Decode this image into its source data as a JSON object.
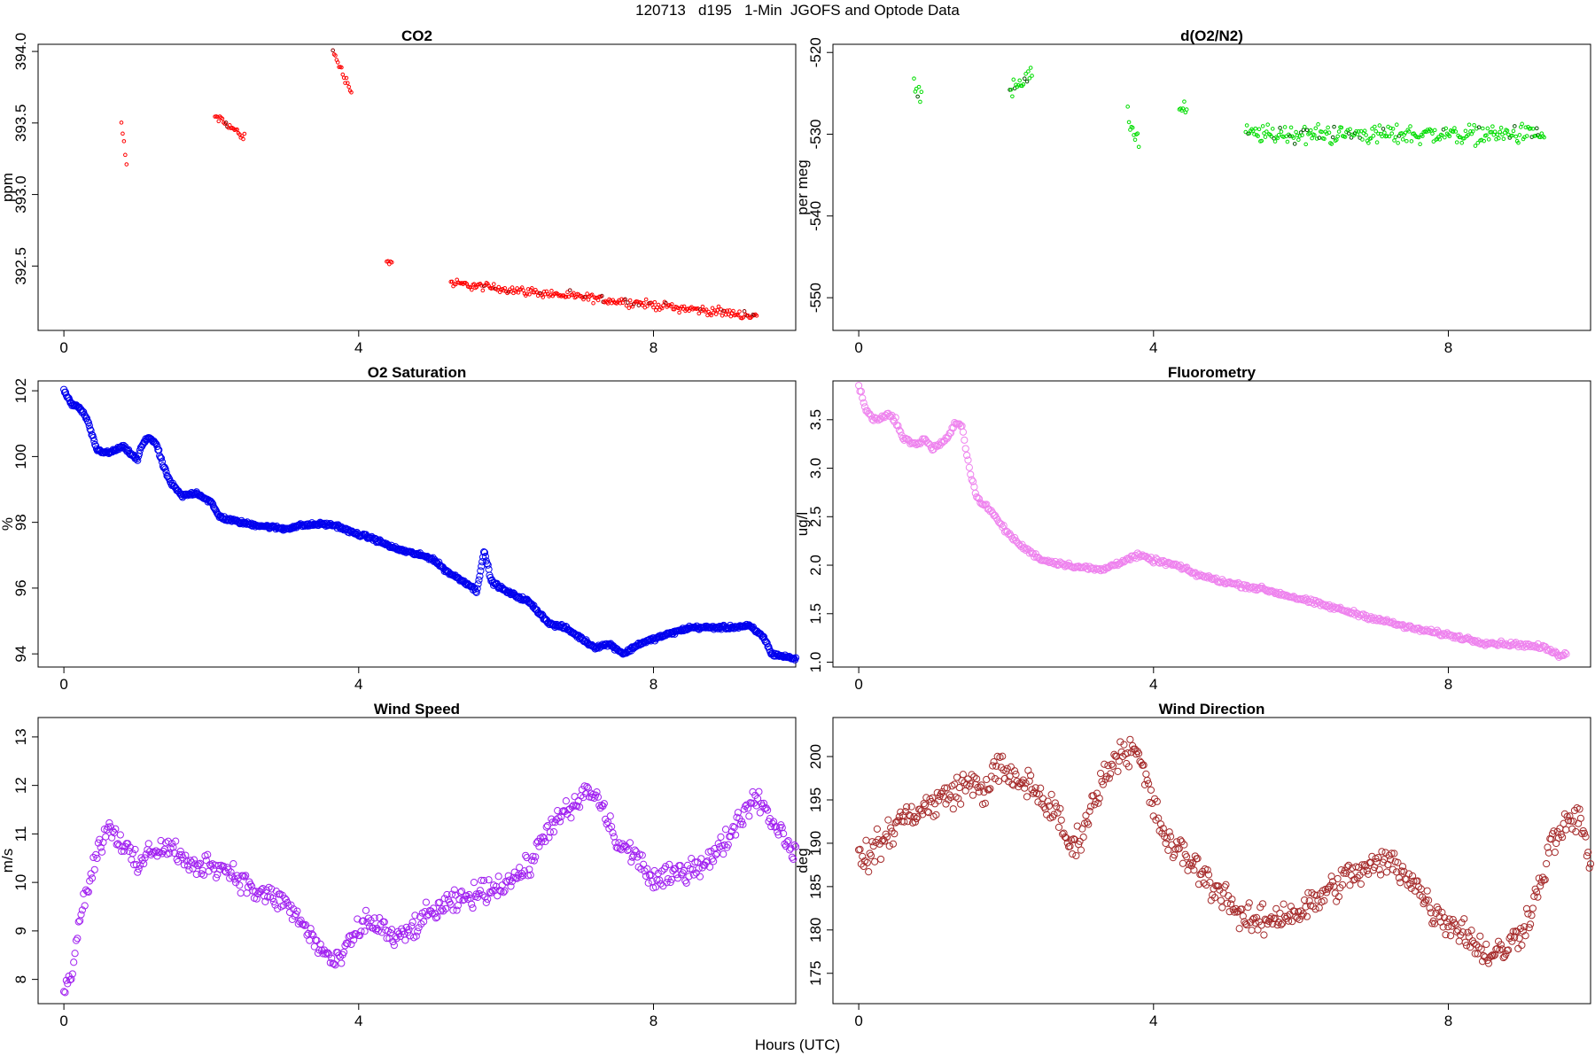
{
  "figure": {
    "title": "120713   d195   1-Min  JGOFS and Optode Data",
    "xlabel": "Hours (UTC)"
  },
  "chart_data": [
    {
      "type": "scatter",
      "id": "co2",
      "title": "CO2",
      "ylabel": "ppm",
      "xlim": [
        -0.35,
        9.93
      ],
      "ylim": [
        392.05,
        394.05
      ],
      "xticks": [
        0,
        4,
        8
      ],
      "yticks": [
        392.5,
        393.0,
        393.5,
        394.0
      ],
      "ytick_labels": [
        "392.5",
        "393.0",
        "393.5",
        "394.0"
      ],
      "color": "#ff0000",
      "accent": "#880000",
      "marker": "small-circle",
      "segments": [
        {
          "x": [
            0.78,
            0.85
          ],
          "y": [
            393.5,
            393.2
          ]
        },
        {
          "x": [
            2.05,
            2.45
          ],
          "y": [
            393.55,
            393.4
          ]
        },
        {
          "x": [
            3.65,
            3.9
          ],
          "y": [
            394.0,
            393.72
          ]
        },
        {
          "x": [
            4.38,
            4.45
          ],
          "y": [
            392.53,
            392.53
          ]
        },
        {
          "x": [
            5.25,
            9.4
          ],
          "y": [
            392.38,
            392.15
          ]
        }
      ]
    },
    {
      "type": "scatter",
      "id": "do2n2",
      "title": "d(O2/N2)",
      "ylabel": "per meg",
      "xlim": [
        -0.35,
        9.93
      ],
      "ylim": [
        -554,
        -519
      ],
      "xticks": [
        0,
        4,
        8
      ],
      "yticks": [
        -550,
        -540,
        -530,
        -520
      ],
      "ytick_labels": [
        "-550",
        "-540",
        "-530",
        "-520"
      ],
      "color": "#00dd00",
      "accent": "#005500",
      "marker": "small-circle",
      "segments": [
        {
          "x": [
            0.75,
            0.85
          ],
          "y": [
            -524,
            -526
          ]
        },
        {
          "x": [
            2.05,
            2.35
          ],
          "y": [
            -524,
            -523
          ]
        },
        {
          "x": [
            3.65,
            3.8
          ],
          "y": [
            -528,
            -531
          ]
        },
        {
          "x": [
            4.35,
            4.45
          ],
          "y": [
            -527,
            -527
          ]
        },
        {
          "x": [
            5.25,
            9.3
          ],
          "y": [
            -530,
            -530
          ]
        }
      ]
    },
    {
      "type": "scatter",
      "id": "o2sat",
      "title": "O2 Saturation",
      "ylabel": "%",
      "xlim": [
        -0.35,
        9.93
      ],
      "ylim": [
        93.6,
        102.3
      ],
      "xticks": [
        0,
        4,
        8
      ],
      "yticks": [
        94,
        96,
        98,
        100,
        102
      ],
      "ytick_labels": [
        "94",
        "96",
        "98",
        "100",
        "102"
      ],
      "color": "#0000ee",
      "marker": "circle",
      "x": [
        0,
        0.1,
        0.2,
        0.3,
        0.45,
        0.6,
        0.8,
        0.9,
        1.0,
        1.05,
        1.15,
        1.25,
        1.35,
        1.45,
        1.6,
        1.8,
        2.0,
        2.1,
        2.2,
        2.5,
        3.0,
        3.2,
        3.5,
        3.7,
        3.9,
        4.2,
        4.5,
        5.0,
        5.2,
        5.5,
        5.6,
        5.7,
        5.75,
        5.8,
        6.0,
        6.3,
        6.6,
        6.8,
        7.0,
        7.2,
        7.4,
        7.6,
        7.8,
        8.2,
        8.5,
        9.0,
        9.3,
        9.5,
        9.6,
        9.93
      ],
      "y": [
        102.0,
        101.6,
        101.5,
        101.2,
        100.2,
        100.1,
        100.3,
        100.1,
        99.9,
        100.3,
        100.6,
        100.4,
        99.7,
        99.2,
        98.8,
        98.9,
        98.6,
        98.2,
        98.1,
        97.95,
        97.8,
        97.9,
        97.95,
        97.9,
        97.7,
        97.5,
        97.2,
        96.9,
        96.5,
        96.1,
        95.9,
        97.1,
        96.7,
        96.2,
        95.9,
        95.6,
        94.9,
        94.8,
        94.5,
        94.2,
        94.3,
        94.0,
        94.3,
        94.6,
        94.8,
        94.8,
        94.85,
        94.5,
        94.0,
        93.85
      ]
    },
    {
      "type": "scatter",
      "id": "fluor",
      "title": "Fluorometry",
      "ylabel": "ug/l",
      "xlim": [
        -0.35,
        9.93
      ],
      "ylim": [
        0.95,
        3.9
      ],
      "xticks": [
        0,
        4,
        8
      ],
      "yticks": [
        1.0,
        1.5,
        2.0,
        2.5,
        3.0,
        3.5
      ],
      "ytick_labels": [
        "1.0",
        "1.5",
        "2.0",
        "2.5",
        "3.0",
        "3.5"
      ],
      "color": "#ee82ee",
      "marker": "circle",
      "x": [
        0,
        0.1,
        0.2,
        0.4,
        0.5,
        0.6,
        0.8,
        0.9,
        1.0,
        1.1,
        1.2,
        1.3,
        1.4,
        1.5,
        1.6,
        1.8,
        2.0,
        2.2,
        2.5,
        3.0,
        3.3,
        3.6,
        3.8,
        4.0,
        4.3,
        4.6,
        5.0,
        5.5,
        6.0,
        6.5,
        7.0,
        7.5,
        8.0,
        8.5,
        9.0,
        9.3,
        9.5,
        9.6
      ],
      "y": [
        3.85,
        3.6,
        3.5,
        3.55,
        3.5,
        3.3,
        3.25,
        3.3,
        3.2,
        3.25,
        3.3,
        3.45,
        3.45,
        3.0,
        2.7,
        2.55,
        2.35,
        2.2,
        2.05,
        1.98,
        1.95,
        2.05,
        2.1,
        2.05,
        2.0,
        1.9,
        1.82,
        1.75,
        1.65,
        1.55,
        1.45,
        1.35,
        1.28,
        1.2,
        1.18,
        1.15,
        1.07,
        1.1
      ]
    },
    {
      "type": "scatter",
      "id": "wspd",
      "title": "Wind Speed",
      "ylabel": "m/s",
      "xlim": [
        -0.35,
        9.93
      ],
      "ylim": [
        7.5,
        13.4
      ],
      "xticks": [
        0,
        4,
        8
      ],
      "yticks": [
        8,
        9,
        10,
        11,
        12,
        13
      ],
      "ytick_labels": [
        "8",
        "9",
        "10",
        "11",
        "12",
        "13"
      ],
      "color": "#a020f0",
      "marker": "circle",
      "x": [
        0,
        0.1,
        0.2,
        0.3,
        0.45,
        0.6,
        0.8,
        1.0,
        1.2,
        1.5,
        1.7,
        2.0,
        2.3,
        2.6,
        3.0,
        3.3,
        3.5,
        3.7,
        3.9,
        4.1,
        4.3,
        4.5,
        4.7,
        5.0,
        5.5,
        6.0,
        6.3,
        6.6,
        6.9,
        7.1,
        7.3,
        7.5,
        7.8,
        8.0,
        8.2,
        8.5,
        8.8,
        9.0,
        9.2,
        9.4,
        9.6,
        9.8,
        9.93
      ],
      "y": [
        7.7,
        8.1,
        9.2,
        9.8,
        10.6,
        11.2,
        10.8,
        10.3,
        10.7,
        10.7,
        10.3,
        10.4,
        10.2,
        9.8,
        9.6,
        9.0,
        8.6,
        8.3,
        8.8,
        9.2,
        9.1,
        8.8,
        9.0,
        9.4,
        9.7,
        10.0,
        10.3,
        11.2,
        11.5,
        11.9,
        11.6,
        10.8,
        10.5,
        10.0,
        10.1,
        10.3,
        10.5,
        10.9,
        11.4,
        11.8,
        11.3,
        10.9,
        10.6
      ]
    },
    {
      "type": "scatter",
      "id": "wdir",
      "title": "Wind Direction",
      "ylabel": "deg",
      "xlim": [
        -0.35,
        9.93
      ],
      "ylim": [
        171.5,
        204.5
      ],
      "xticks": [
        0,
        4,
        8
      ],
      "yticks": [
        175,
        180,
        185,
        190,
        195,
        200
      ],
      "ytick_labels": [
        "175",
        "180",
        "185",
        "190",
        "195",
        "200"
      ],
      "color": "#a52a2a",
      "marker": "circle",
      "x": [
        0,
        0.2,
        0.4,
        0.6,
        0.9,
        1.1,
        1.3,
        1.5,
        1.7,
        1.9,
        2.1,
        2.3,
        2.5,
        2.7,
        2.9,
        3.0,
        3.2,
        3.4,
        3.6,
        3.8,
        4.0,
        4.2,
        4.5,
        4.8,
        5.0,
        5.2,
        5.5,
        5.8,
        6.0,
        6.3,
        6.6,
        6.9,
        7.2,
        7.5,
        7.8,
        8.0,
        8.2,
        8.4,
        8.6,
        8.8,
        9.0,
        9.2,
        9.4,
        9.6,
        9.8,
        9.93
      ],
      "y": [
        188,
        189,
        191,
        193,
        194,
        195,
        196,
        197,
        196,
        199,
        197,
        197,
        195,
        193,
        189,
        191,
        195,
        199,
        201,
        200,
        194,
        190,
        188,
        185,
        184,
        181,
        181,
        182,
        182,
        184,
        186,
        187,
        188,
        186,
        182,
        181,
        180,
        178,
        177,
        178,
        180,
        184,
        190,
        192,
        193,
        187
      ]
    }
  ]
}
